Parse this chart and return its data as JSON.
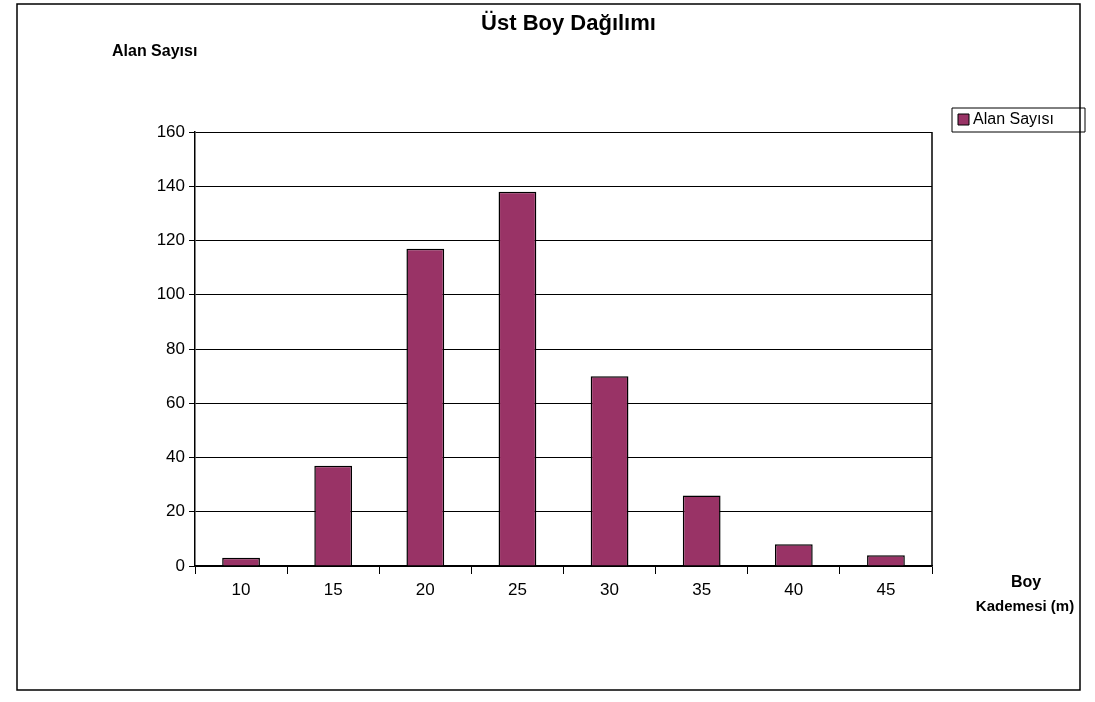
{
  "chart_data": {
    "type": "bar",
    "title": "Üst Boy Dağılımı",
    "ylabel": "Alan Sayısı",
    "xlabel": "Boy Kademesi (m)",
    "categories": [
      "10",
      "15",
      "20",
      "25",
      "30",
      "35",
      "40",
      "45"
    ],
    "series": [
      {
        "name": "Alan Sayısı",
        "color": "#993366",
        "values": [
          3,
          37,
          117,
          138,
          70,
          26,
          8,
          4
        ]
      }
    ],
    "ylim": [
      0,
      160
    ],
    "yticks": [
      0,
      20,
      40,
      60,
      80,
      100,
      120,
      140,
      160
    ],
    "grid": "y",
    "legend": "top right"
  }
}
